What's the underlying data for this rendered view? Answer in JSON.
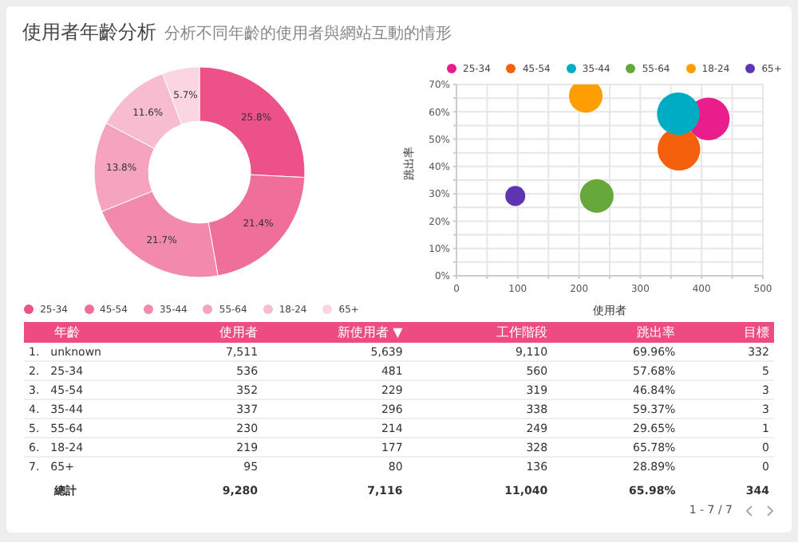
{
  "chart_data": [
    {
      "type": "donut",
      "title": "使用者年齡分析",
      "subtitle": "分析不同年齡的使用者與網站互動的情形",
      "categories": [
        "25-34",
        "45-54",
        "35-44",
        "55-64",
        "18-24",
        "65+"
      ],
      "values": [
        25.8,
        21.4,
        21.7,
        13.8,
        11.6,
        5.7
      ],
      "value_labels": [
        "25.8%",
        "21.4%",
        "21.7%",
        "13.8%",
        "11.6%",
        "5.7%"
      ],
      "colors": [
        "#ec5287",
        "#ef6f9a",
        "#f28aad",
        "#f5a3bf",
        "#f8bcd1",
        "#fbd5e2"
      ],
      "legend": "bottom"
    },
    {
      "type": "bubble",
      "xlabel": "使用者",
      "ylabel": "跳出率",
      "xlim": [
        0,
        500
      ],
      "ylim": [
        0,
        0.7
      ],
      "xticks": [
        0,
        {
          "value": 50,
          "label": null
        },
        100,
        {
          "value": 150,
          "label": null
        },
        200,
        {
          "value": 250,
          "label": null
        },
        300,
        {
          "value": 350,
          "label": null
        },
        400,
        {
          "value": 450,
          "label": null
        },
        500
      ],
      "yticks": [
        {
          "value": 0,
          "label": "0%"
        },
        {
          "value": 0.05,
          "label": null
        },
        {
          "value": 0.1,
          "label": "10%"
        },
        {
          "value": 0.15,
          "label": null
        },
        {
          "value": 0.2,
          "label": "20%"
        },
        {
          "value": 0.25,
          "label": null
        },
        {
          "value": 0.3,
          "label": "30%"
        },
        {
          "value": 0.35,
          "label": null
        },
        {
          "value": 0.4,
          "label": "40%"
        },
        {
          "value": 0.45,
          "label": null
        },
        {
          "value": 0.5,
          "label": "50%"
        },
        {
          "value": 0.55,
          "label": null
        },
        {
          "value": 0.6,
          "label": "60%"
        },
        {
          "value": 0.65,
          "label": null
        },
        {
          "value": 0.7,
          "label": "70%"
        }
      ],
      "grid": true,
      "legend": "top left",
      "series": [
        {
          "name": "25-34",
          "color": "#e91e8c",
          "x": [
            411
          ],
          "values": [
            0.574
          ],
          "sizes": [
            1
          ]
        },
        {
          "name": "45-54",
          "color": "#f4600c",
          "x": [
            363
          ],
          "values": [
            0.463
          ],
          "sizes": [
            1
          ]
        },
        {
          "name": "35-44",
          "color": "#00acc1",
          "x": [
            362
          ],
          "values": [
            0.593
          ],
          "sizes": [
            1
          ]
        },
        {
          "name": "55-64",
          "color": "#67a83a",
          "x": [
            229
          ],
          "values": [
            0.292
          ],
          "sizes": [
            0.62
          ]
        },
        {
          "name": "18-24",
          "color": "#ff9e00",
          "x": [
            211
          ],
          "values": [
            0.658
          ],
          "sizes": [
            0.62
          ]
        },
        {
          "name": "65+",
          "color": "#5e35b1",
          "x": [
            96
          ],
          "values": [
            0.292
          ],
          "sizes": [
            0.22
          ]
        }
      ]
    },
    {
      "type": "other",
      "categories": [
        null,
        "年齡",
        "使用者",
        "新使用者 ▼",
        "工作階段",
        "跳出率",
        "目標"
      ],
      "cell_labels": [
        [
          "1.",
          "unknown",
          "7,511",
          "5,639",
          "9,110",
          "69.96%",
          "332"
        ],
        [
          "2.",
          "25-34",
          "536",
          "481",
          "560",
          "57.68%",
          "5"
        ],
        [
          "3.",
          "45-54",
          "352",
          "229",
          "319",
          "46.84%",
          "3"
        ],
        [
          "4.",
          "35-44",
          "337",
          "296",
          "338",
          "59.37%",
          "3"
        ],
        [
          "5.",
          "55-64",
          "230",
          "214",
          "249",
          "29.65%",
          "1"
        ],
        [
          "6.",
          "18-24",
          "219",
          "177",
          "328",
          "65.78%",
          "0"
        ],
        [
          "7.",
          "65+",
          "95",
          "80",
          "136",
          "28.89%",
          "0"
        ],
        [
          null,
          "總計",
          "9,280",
          "7,116",
          "11,040",
          "65.98%",
          "344"
        ]
      ],
      "annotations": [
        "1 - 7 / 7"
      ]
    }
  ]
}
